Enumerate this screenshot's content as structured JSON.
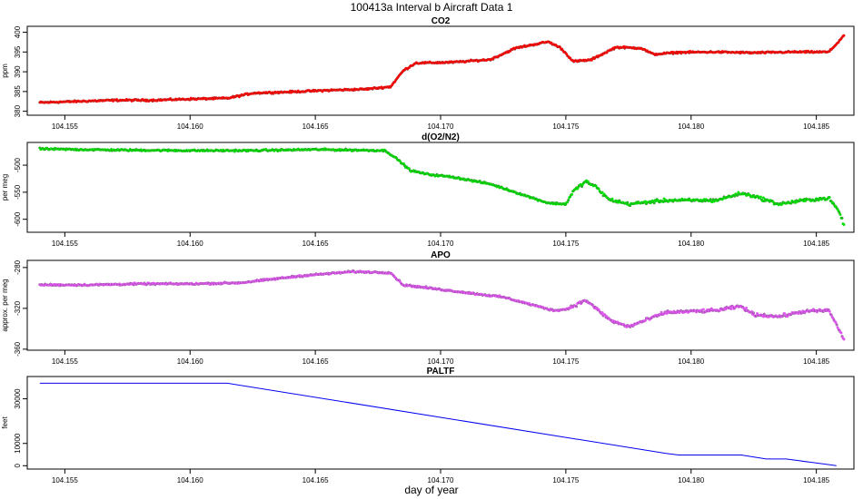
{
  "figure": {
    "title": "100413a   Interval b Aircraft Data 1",
    "xlabel": "day of year"
  },
  "chart_data": [
    {
      "type": "scatter",
      "title": "CO2",
      "ylabel": "ppm",
      "xlim": [
        104.1535,
        104.1865
      ],
      "ylim": [
        379,
        401.5
      ],
      "x_ticks": [
        104.155,
        104.16,
        104.165,
        104.17,
        104.175,
        104.18,
        104.185
      ],
      "x_tick_labels": [
        "104.155",
        "104.160",
        "104.165",
        "104.170",
        "104.175",
        "104.180",
        "104.185"
      ],
      "y_ticks": [
        380,
        385,
        390,
        395,
        400
      ],
      "y_tick_labels": [
        "380",
        "385",
        "390",
        "395",
        "400"
      ],
      "point_color": "#ff0000",
      "series": [
        {
          "x": [
            104.154,
            104.1555,
            104.157,
            104.1585,
            104.16,
            104.1615,
            104.1625,
            104.164,
            104.1655,
            104.167,
            104.168,
            104.1685,
            104.169,
            104.1705,
            104.172,
            104.173,
            104.1743,
            104.1748,
            104.1753,
            104.176,
            104.177,
            104.178,
            104.1785,
            104.1795,
            104.181,
            104.1825,
            104.184,
            104.1855,
            104.1858,
            104.1861
          ],
          "y": [
            382.2,
            382.5,
            382.8,
            382.8,
            383.1,
            383.3,
            384.6,
            384.9,
            385.3,
            385.6,
            386.2,
            390.2,
            392.2,
            392.4,
            393.1,
            396.0,
            397.6,
            396.0,
            392.6,
            393.0,
            396.2,
            396.0,
            394.4,
            394.9,
            395.0,
            394.8,
            395.0,
            395.0,
            397.0,
            399.2
          ]
        }
      ]
    },
    {
      "type": "scatter",
      "title": "d(O2/N2)",
      "ylabel": "per meg",
      "xlim": [
        104.1535,
        104.1865
      ],
      "ylim": [
        -624,
        -458
      ],
      "x_ticks": [
        104.155,
        104.16,
        104.165,
        104.17,
        104.175,
        104.18,
        104.185
      ],
      "x_tick_labels": [
        "104.155",
        "104.160",
        "104.165",
        "104.170",
        "104.175",
        "104.180",
        "104.185"
      ],
      "y_ticks": [
        -500,
        -550,
        -600
      ],
      "y_tick_labels": [
        "-500",
        "-550",
        "-600"
      ],
      "point_color": "#00dd00",
      "series": [
        {
          "x": [
            104.154,
            104.157,
            104.16,
            104.1625,
            104.165,
            104.1678,
            104.1683,
            104.1688,
            104.1695,
            104.1705,
            104.172,
            104.1735,
            104.1743,
            104.175,
            104.1753,
            104.1758,
            104.1762,
            104.1767,
            104.1775,
            104.179,
            104.181,
            104.182,
            104.1825,
            104.1835,
            104.1845,
            104.1855,
            104.1859,
            104.1861
          ],
          "y": [
            -470,
            -472,
            -473,
            -473,
            -471,
            -473,
            -490,
            -510,
            -517,
            -522,
            -535,
            -558,
            -570,
            -572,
            -548,
            -530,
            -540,
            -563,
            -572,
            -565,
            -565,
            -552,
            -557,
            -572,
            -565,
            -561,
            -585,
            -610
          ]
        }
      ]
    },
    {
      "type": "scatter",
      "title": "APO",
      "ylabel": "approx. per meg",
      "xlim": [
        104.1535,
        104.1865
      ],
      "ylim": [
        -361,
        -273
      ],
      "x_ticks": [
        104.155,
        104.16,
        104.165,
        104.17,
        104.175,
        104.18,
        104.185
      ],
      "x_tick_labels": [
        "104.155",
        "104.160",
        "104.165",
        "104.170",
        "104.175",
        "104.180",
        "104.185"
      ],
      "y_ticks": [
        -280,
        -320,
        -360
      ],
      "y_tick_labels": [
        "-280",
        "-320",
        "-360"
      ],
      "point_color": "#dd55ee",
      "series": [
        {
          "x": [
            104.154,
            104.156,
            104.158,
            104.16,
            104.162,
            104.1645,
            104.1665,
            104.168,
            104.1685,
            104.1705,
            104.1725,
            104.1745,
            104.175,
            104.1758,
            104.1768,
            104.1775,
            104.179,
            104.181,
            104.182,
            104.1825,
            104.1835,
            104.1845,
            104.1855,
            104.1861
          ],
          "y": [
            -297,
            -297,
            -296,
            -296,
            -295,
            -288,
            -284,
            -285,
            -297,
            -303,
            -309,
            -322,
            -321,
            -312,
            -332,
            -338,
            -324,
            -322,
            -318,
            -326,
            -328,
            -323,
            -322,
            -350
          ]
        }
      ]
    },
    {
      "type": "line",
      "title": "PALTF",
      "ylabel": "feet",
      "xlim": [
        104.1535,
        104.1865
      ],
      "ylim": [
        -1500,
        40000
      ],
      "x_ticks": [
        104.155,
        104.16,
        104.165,
        104.17,
        104.175,
        104.18,
        104.185
      ],
      "x_tick_labels": [
        "104.155",
        "104.160",
        "104.165",
        "104.170",
        "104.175",
        "104.180",
        "104.185"
      ],
      "y_ticks": [
        0,
        10000,
        30000
      ],
      "y_tick_labels": [
        "0",
        "10000",
        "30000"
      ],
      "line_color": "#0000ee",
      "series": [
        {
          "x": [
            104.154,
            104.1615,
            104.179,
            104.1795,
            104.182,
            104.183,
            104.1838,
            104.1858
          ],
          "y": [
            37000,
            37000,
            5500,
            4800,
            4800,
            3000,
            3000,
            0
          ]
        }
      ]
    }
  ]
}
